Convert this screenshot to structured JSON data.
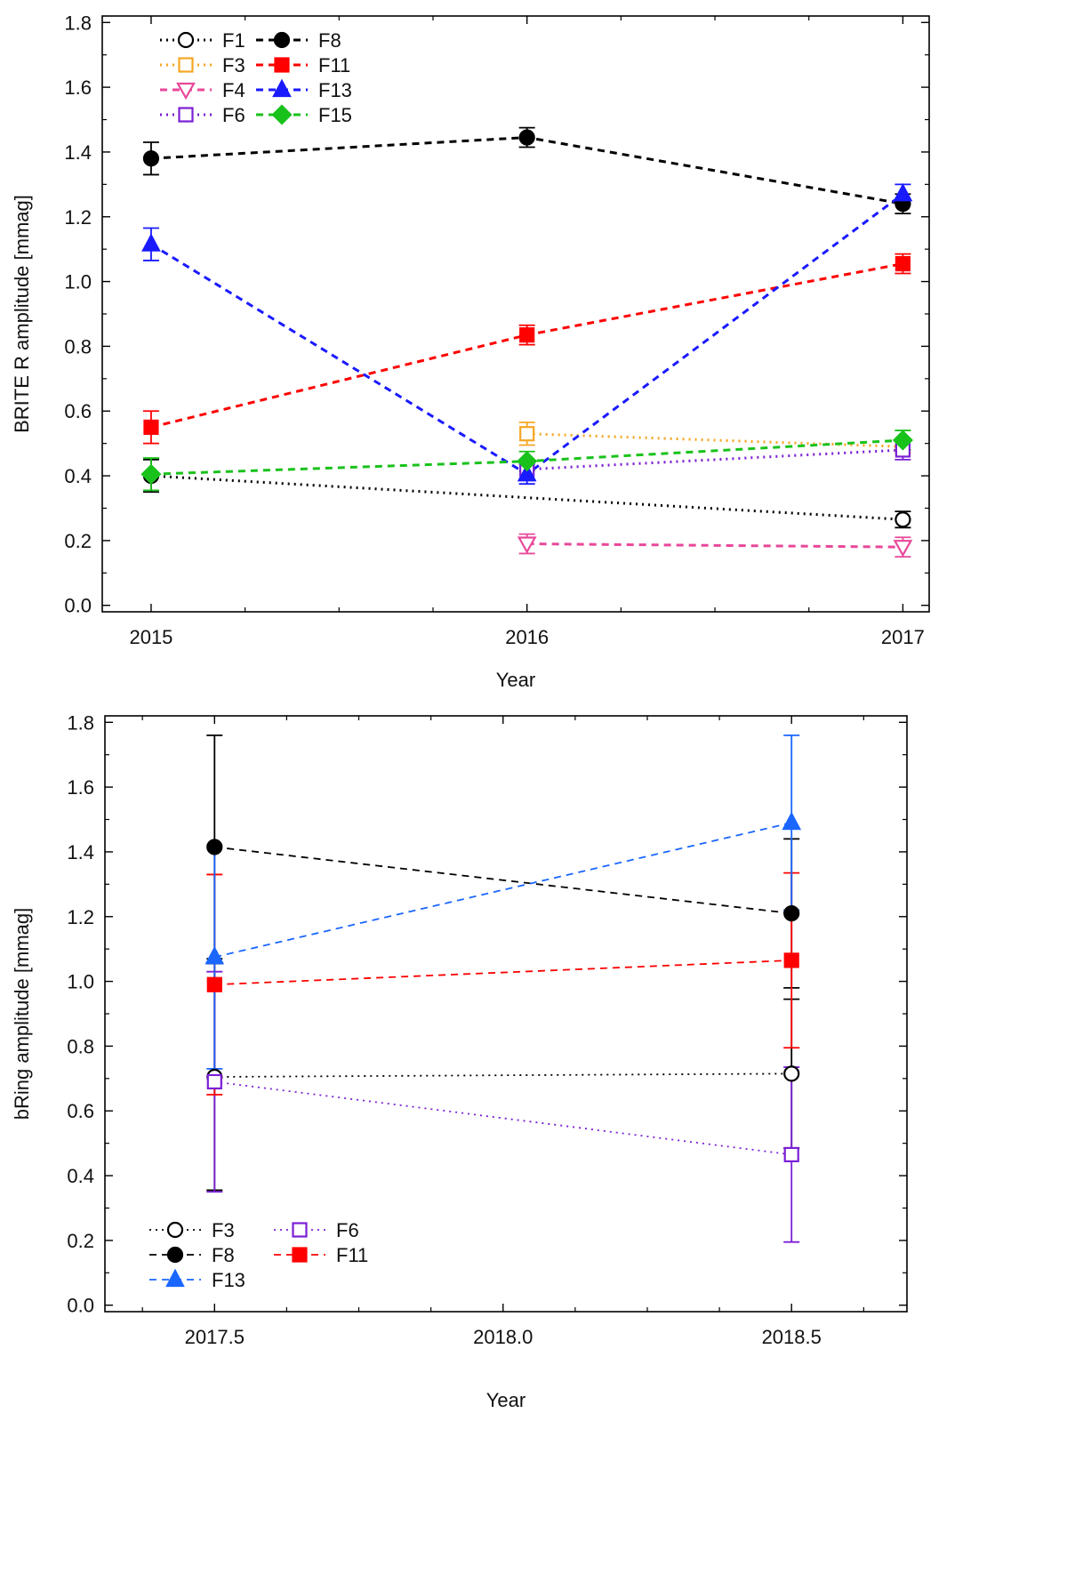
{
  "chart_data": [
    {
      "type": "line",
      "title": "",
      "xlabel": "Year",
      "ylabel": "BRITE R amplitude [mmag]",
      "xlim": [
        2014.87,
        2017.07
      ],
      "ylim": [
        -0.02,
        1.82
      ],
      "xticks": [
        2015,
        2016,
        2017
      ],
      "xtick_labels": [
        "2015",
        "2016",
        "2017"
      ],
      "yticks": [
        0.0,
        0.2,
        0.4,
        0.6,
        0.8,
        1.0,
        1.2,
        1.4,
        1.6,
        1.8
      ],
      "ytick_labels": [
        "0.0",
        "0.2",
        "0.4",
        "0.6",
        "0.8",
        "1.0",
        "1.2",
        "1.4",
        "1.6",
        "1.8"
      ],
      "grid": false,
      "legend_position": "top-left",
      "series": [
        {
          "name": "F1",
          "color": "#000000",
          "marker": "circle",
          "filled": false,
          "dash": "dot",
          "x": [
            2015,
            2017
          ],
          "y": [
            0.4,
            0.265
          ],
          "err": [
            0.05,
            0.025
          ]
        },
        {
          "name": "F3",
          "color": "#f5a623",
          "marker": "square",
          "filled": false,
          "dash": "dot",
          "x": [
            2016,
            2017
          ],
          "y": [
            0.53,
            0.49
          ],
          "err": [
            0.035,
            0.02
          ]
        },
        {
          "name": "F4",
          "color": "#e8489a",
          "marker": "triangle-down",
          "filled": false,
          "dash": "dash",
          "x": [
            2016,
            2017
          ],
          "y": [
            0.19,
            0.18
          ],
          "err": [
            0.03,
            0.03
          ]
        },
        {
          "name": "F6",
          "color": "#7b1fd6",
          "marker": "square",
          "filled": false,
          "dash": "dot",
          "x": [
            2016,
            2017
          ],
          "y": [
            0.42,
            0.48
          ],
          "err": [
            0.03,
            0.03
          ]
        },
        {
          "name": "F8",
          "color": "#000000",
          "marker": "circle",
          "filled": true,
          "dash": "dash",
          "x": [
            2015,
            2016,
            2017
          ],
          "y": [
            1.38,
            1.445,
            1.24
          ],
          "err": [
            0.05,
            0.03,
            0.03
          ]
        },
        {
          "name": "F11",
          "color": "#ff0000",
          "marker": "square",
          "filled": true,
          "dash": "dash",
          "x": [
            2015,
            2016,
            2017
          ],
          "y": [
            0.55,
            0.835,
            1.055
          ],
          "err": [
            0.05,
            0.03,
            0.03
          ]
        },
        {
          "name": "F13",
          "color": "#1a1aff",
          "marker": "triangle-up",
          "filled": true,
          "dash": "dash",
          "x": [
            2015,
            2016,
            2017
          ],
          "y": [
            1.115,
            0.405,
            1.27
          ],
          "err": [
            0.05,
            0.03,
            0.03
          ]
        },
        {
          "name": "F15",
          "color": "#19c21b",
          "marker": "diamond",
          "filled": true,
          "dash": "dash",
          "x": [
            2015,
            2016,
            2017
          ],
          "y": [
            0.405,
            0.445,
            0.51
          ],
          "err": [
            0.05,
            0.03,
            0.03
          ]
        }
      ]
    },
    {
      "type": "line",
      "title": "",
      "xlabel": "Year",
      "ylabel": "bRing amplitude [mmag]",
      "xlim": [
        2017.31,
        2018.7
      ],
      "ylim": [
        -0.02,
        1.82
      ],
      "xticks": [
        2017.5,
        2018.0,
        2018.5
      ],
      "xtick_labels": [
        "2017.5",
        "2018.0",
        "2018.5"
      ],
      "yticks": [
        0.0,
        0.2,
        0.4,
        0.6,
        0.8,
        1.0,
        1.2,
        1.4,
        1.6,
        1.8
      ],
      "ytick_labels": [
        "0.0",
        "0.2",
        "0.4",
        "0.6",
        "0.8",
        "1.0",
        "1.2",
        "1.4",
        "1.6",
        "1.8"
      ],
      "grid": false,
      "legend_position": "bottom-left",
      "series": [
        {
          "name": "F3",
          "color": "#000000",
          "marker": "circle",
          "filled": false,
          "dash": "dot",
          "x": [
            2017.5,
            2018.5
          ],
          "y": [
            0.705,
            0.715
          ],
          "err": [
            0.35,
            0.23
          ]
        },
        {
          "name": "F6",
          "color": "#7b1fd6",
          "marker": "square",
          "filled": false,
          "dash": "dot",
          "x": [
            2017.5,
            2018.5
          ],
          "y": [
            0.69,
            0.465
          ],
          "err": [
            0.34,
            0.27
          ]
        },
        {
          "name": "F8",
          "color": "#000000",
          "marker": "circle",
          "filled": true,
          "dash": "dash",
          "x": [
            2017.5,
            2018.5
          ],
          "y": [
            1.415,
            1.21
          ],
          "err": [
            0.345,
            0.23
          ]
        },
        {
          "name": "F11",
          "color": "#ff0000",
          "marker": "square",
          "filled": true,
          "dash": "dash",
          "x": [
            2017.5,
            2018.5
          ],
          "y": [
            0.99,
            1.065
          ],
          "err": [
            0.34,
            0.27
          ]
        },
        {
          "name": "F13",
          "color": "#1a66ff",
          "marker": "triangle-up",
          "filled": true,
          "dash": "dash",
          "x": [
            2017.5,
            2018.5
          ],
          "y": [
            1.075,
            1.49
          ],
          "err": [
            0.345,
            0.27
          ]
        }
      ]
    }
  ]
}
